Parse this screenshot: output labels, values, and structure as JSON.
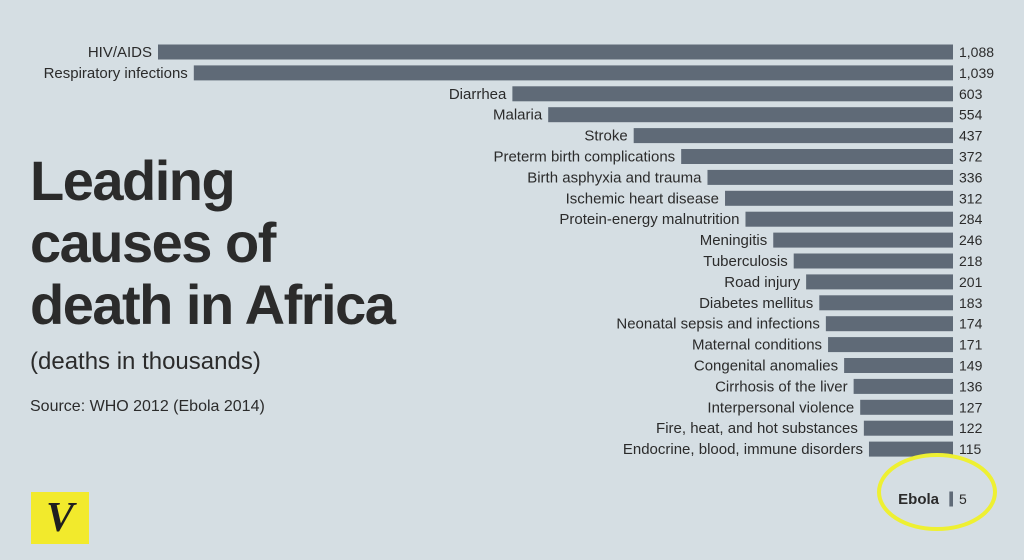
{
  "title_lines": [
    "Leading",
    "causes of",
    "death in Africa"
  ],
  "subtitle": "(deaths in thousands)",
  "source": "Source: WHO 2012 (Ebola 2014)",
  "logo_text": "V",
  "colors": {
    "background": "#d5dee3",
    "bar": "#5f6a77",
    "text": "#2b2b2b",
    "highlight_circle": "#eef032",
    "logo": "#f2ea2c"
  },
  "chart_data": {
    "type": "bar",
    "orientation": "horizontal",
    "categories": [
      "HIV/AIDS",
      "Respiratory infections",
      "Diarrhea",
      "Malaria",
      "Stroke",
      "Preterm birth complications",
      "Birth asphyxia and trauma",
      "Ischemic heart disease",
      "Protein-energy malnutrition",
      "Meningitis",
      "Tuberculosis",
      "Road injury",
      "Diabetes mellitus",
      "Neonatal sepsis and infections",
      "Maternal conditions",
      "Congenital anomalies",
      "Cirrhosis of the liver",
      "Interpersonal violence",
      "Fire, heat, and hot substances",
      "Endocrine, blood, immune disorders",
      "Ebola"
    ],
    "values": [
      1088,
      1039,
      603,
      554,
      437,
      372,
      336,
      312,
      284,
      246,
      218,
      201,
      183,
      174,
      171,
      149,
      136,
      127,
      122,
      115,
      5
    ],
    "value_labels": [
      "1,088",
      "1,039",
      "603",
      "554",
      "437",
      "372",
      "336",
      "312",
      "284",
      "246",
      "218",
      "201",
      "183",
      "174",
      "171",
      "149",
      "136",
      "127",
      "122",
      "115",
      "5"
    ],
    "highlight": "Ebola",
    "xlim": [
      0,
      1088
    ],
    "grid": false,
    "legend": "none"
  }
}
